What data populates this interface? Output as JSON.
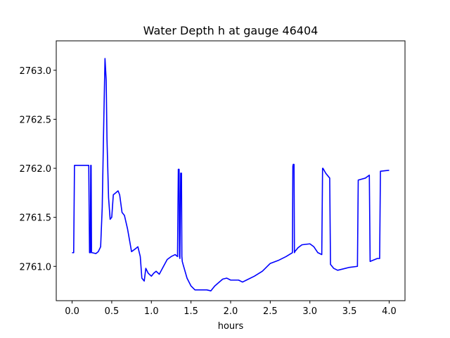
{
  "chart_data": {
    "type": "line",
    "title": "Water Depth h at gauge 46404",
    "xlabel": "hours",
    "ylabel": "",
    "xlim": [
      -0.2,
      4.2
    ],
    "ylim": [
      2760.65,
      2763.3
    ],
    "xticks": [
      {
        "value": 0.0,
        "label": "0.0"
      },
      {
        "value": 0.5,
        "label": "0.5"
      },
      {
        "value": 1.0,
        "label": "1.0"
      },
      {
        "value": 1.5,
        "label": "1.5"
      },
      {
        "value": 2.0,
        "label": "2.0"
      },
      {
        "value": 2.5,
        "label": "2.5"
      },
      {
        "value": 3.0,
        "label": "3.0"
      },
      {
        "value": 3.5,
        "label": "3.5"
      },
      {
        "value": 4.0,
        "label": "4.0"
      }
    ],
    "yticks": [
      {
        "value": 2761.0,
        "label": "2761.0"
      },
      {
        "value": 2761.5,
        "label": "2761.5"
      },
      {
        "value": 2762.0,
        "label": "2762.0"
      },
      {
        "value": 2762.5,
        "label": "2762.5"
      },
      {
        "value": 2763.0,
        "label": "2763.0"
      }
    ],
    "grid": false,
    "series": [
      {
        "color": "#0000ff",
        "x": [
          0.0,
          0.02,
          0.03,
          0.2,
          0.21,
          0.22,
          0.23,
          0.235,
          0.24,
          0.245,
          0.25,
          0.3,
          0.33,
          0.36,
          0.38,
          0.4,
          0.415,
          0.43,
          0.44,
          0.46,
          0.48,
          0.5,
          0.52,
          0.55,
          0.58,
          0.6,
          0.63,
          0.66,
          0.7,
          0.75,
          0.8,
          0.83,
          0.86,
          0.88,
          0.91,
          0.93,
          0.96,
          1.0,
          1.03,
          1.06,
          1.1,
          1.14,
          1.2,
          1.25,
          1.3,
          1.33,
          1.34,
          1.345,
          1.35,
          1.355,
          1.36,
          1.37,
          1.375,
          1.38,
          1.385,
          1.39,
          1.4,
          1.45,
          1.5,
          1.55,
          1.6,
          1.7,
          1.75,
          1.8,
          1.9,
          1.95,
          2.0,
          2.1,
          2.15,
          2.2,
          2.3,
          2.4,
          2.5,
          2.6,
          2.7,
          2.78,
          2.785,
          2.79,
          2.8,
          2.805,
          2.81,
          2.85,
          2.9,
          3.0,
          3.05,
          3.1,
          3.15,
          3.16,
          3.165,
          3.2,
          3.25,
          3.26,
          3.3,
          3.35,
          3.4,
          3.5,
          3.6,
          3.61,
          3.7,
          3.75,
          3.76,
          3.85,
          3.88,
          3.89,
          4.0
        ],
        "values": [
          2761.14,
          2761.14,
          2762.03,
          2762.03,
          2762.03,
          2761.14,
          2761.14,
          2762.03,
          2762.03,
          2761.14,
          2761.14,
          2761.13,
          2761.15,
          2761.2,
          2761.6,
          2762.5,
          2763.12,
          2762.9,
          2762.3,
          2761.7,
          2761.48,
          2761.5,
          2761.73,
          2761.75,
          2761.77,
          2761.73,
          2761.55,
          2761.52,
          2761.38,
          2761.15,
          2761.18,
          2761.2,
          2761.1,
          2760.88,
          2760.85,
          2760.98,
          2760.93,
          2760.9,
          2760.93,
          2760.95,
          2760.92,
          2760.98,
          2761.07,
          2761.1,
          2761.12,
          2761.1,
          2761.99,
          2761.99,
          2761.99,
          2761.1,
          2761.08,
          2761.95,
          2761.95,
          2761.95,
          2761.1,
          2761.05,
          2761.02,
          2760.88,
          2760.8,
          2760.76,
          2760.76,
          2760.76,
          2760.75,
          2760.8,
          2760.87,
          2760.88,
          2760.86,
          2760.86,
          2760.84,
          2760.86,
          2760.9,
          2760.95,
          2761.03,
          2761.06,
          2761.1,
          2761.14,
          2762.02,
          2762.04,
          2762.04,
          2761.14,
          2761.15,
          2761.19,
          2761.22,
          2761.23,
          2761.2,
          2761.14,
          2761.12,
          2762.0,
          2762.0,
          2761.95,
          2761.9,
          2761.02,
          2760.98,
          2760.96,
          2760.97,
          2760.99,
          2761.0,
          2761.88,
          2761.9,
          2761.93,
          2761.05,
          2761.08,
          2761.08,
          2761.97,
          2761.98
        ]
      }
    ]
  }
}
